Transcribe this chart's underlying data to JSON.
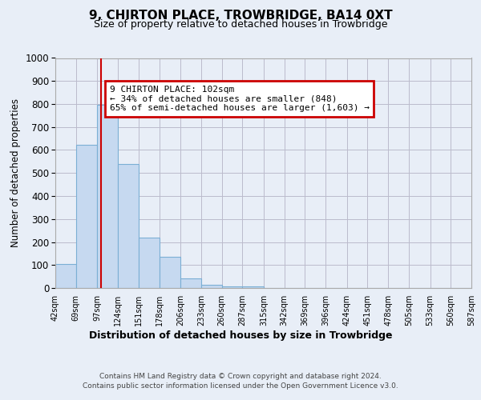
{
  "title1": "9, CHIRTON PLACE, TROWBRIDGE, BA14 0XT",
  "title2": "Size of property relative to detached houses in Trowbridge",
  "xlabel": "Distribution of detached houses by size in Trowbridge",
  "ylabel": "Number of detached properties",
  "bar_edges": [
    42,
    69,
    97,
    124,
    151,
    178,
    206,
    233,
    260,
    287,
    315,
    342,
    369,
    396,
    424,
    451,
    478,
    505,
    533,
    560,
    587
  ],
  "bar_heights": [
    105,
    622,
    795,
    540,
    220,
    135,
    42,
    15,
    8,
    8,
    0,
    0,
    0,
    0,
    0,
    0,
    0,
    0,
    0,
    0
  ],
  "bar_color": "#c6d9f0",
  "bar_edge_color": "#7bafd4",
  "property_line_x": 102,
  "annotation_text": "9 CHIRTON PLACE: 102sqm\n← 34% of detached houses are smaller (848)\n65% of semi-detached houses are larger (1,603) →",
  "annotation_box_color": "#ffffff",
  "annotation_box_edge_color": "#cc0000",
  "red_line_color": "#cc0000",
  "ylim": [
    0,
    1000
  ],
  "yticks": [
    0,
    100,
    200,
    300,
    400,
    500,
    600,
    700,
    800,
    900,
    1000
  ],
  "footer_line1": "Contains HM Land Registry data © Crown copyright and database right 2024.",
  "footer_line2": "Contains public sector information licensed under the Open Government Licence v3.0.",
  "bg_color": "#e8eef7",
  "plot_bg_color": "#e8eef7"
}
